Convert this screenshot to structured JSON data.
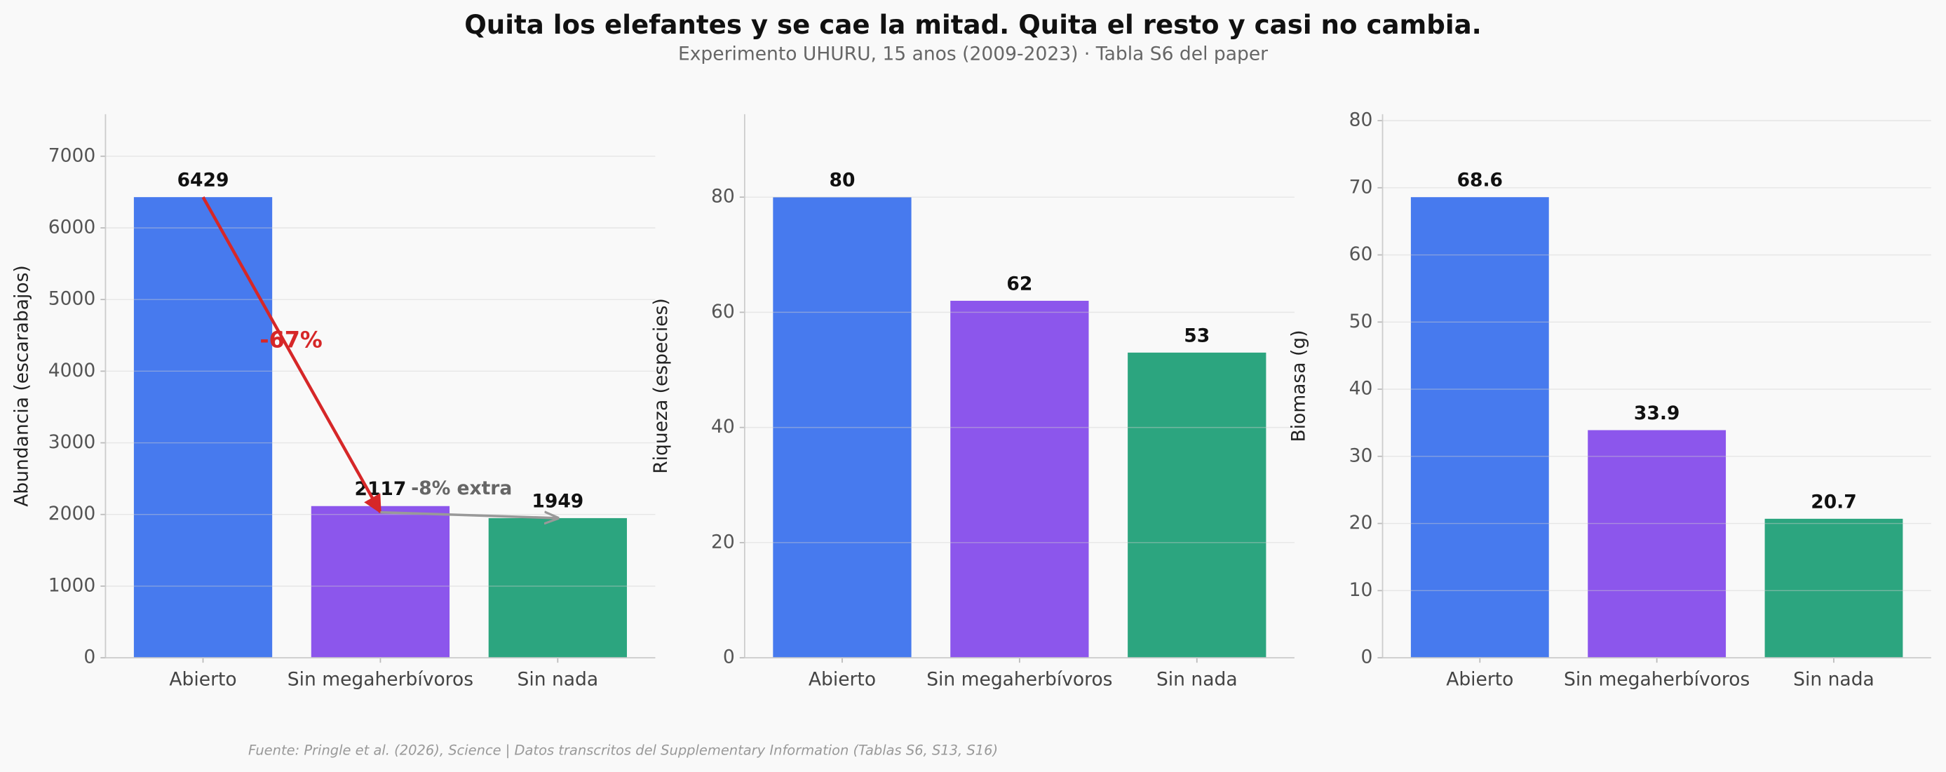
{
  "title": "Quita los elefantes y se cae la mitad. Quita el resto y casi no cambia.",
  "subtitle": "Experimento UHURU, 15 anos (2009-2023) · Tabla S6 del paper",
  "source": "Fuente: Pringle et al. (2026), Science | Datos transcritos del Supplementary Information (Tablas S6, S13, S16)",
  "chart_data": [
    {
      "type": "bar",
      "y_label": "Abundancia (escarabajos)",
      "categories": [
        "Abierto",
        "Sin megaherbívoros",
        "Sin nada"
      ],
      "values": [
        6429,
        2117,
        1949
      ],
      "colors": [
        "#477aee",
        "#8c56ec",
        "#2ca57f"
      ],
      "ylim": [
        0,
        7586
      ],
      "yticks": [
        0,
        1000,
        2000,
        3000,
        4000,
        5000,
        6000,
        7000
      ],
      "grid": true,
      "annotations": [
        {
          "text": "-67%",
          "color": "#d62728"
        },
        {
          "text": "-8% extra",
          "color": "#666666"
        }
      ]
    },
    {
      "type": "bar",
      "y_label": "Riqueza (especies)",
      "categories": [
        "Abierto",
        "Sin megaherbívoros",
        "Sin nada"
      ],
      "values": [
        80,
        62,
        53
      ],
      "colors": [
        "#477aee",
        "#8c56ec",
        "#2ca57f"
      ],
      "ylim": [
        0,
        94.4
      ],
      "yticks": [
        0,
        20,
        40,
        60,
        80
      ],
      "grid": true
    },
    {
      "type": "bar",
      "y_label": "Biomasa (g)",
      "categories": [
        "Abierto",
        "Sin megaherbívoros",
        "Sin nada"
      ],
      "values": [
        68.6,
        33.9,
        20.7
      ],
      "colors": [
        "#477aee",
        "#8c56ec",
        "#2ca57f"
      ],
      "ylim": [
        0,
        80.95
      ],
      "yticks": [
        0,
        10,
        20,
        30,
        40,
        50,
        60,
        70,
        80
      ],
      "grid": true
    }
  ]
}
